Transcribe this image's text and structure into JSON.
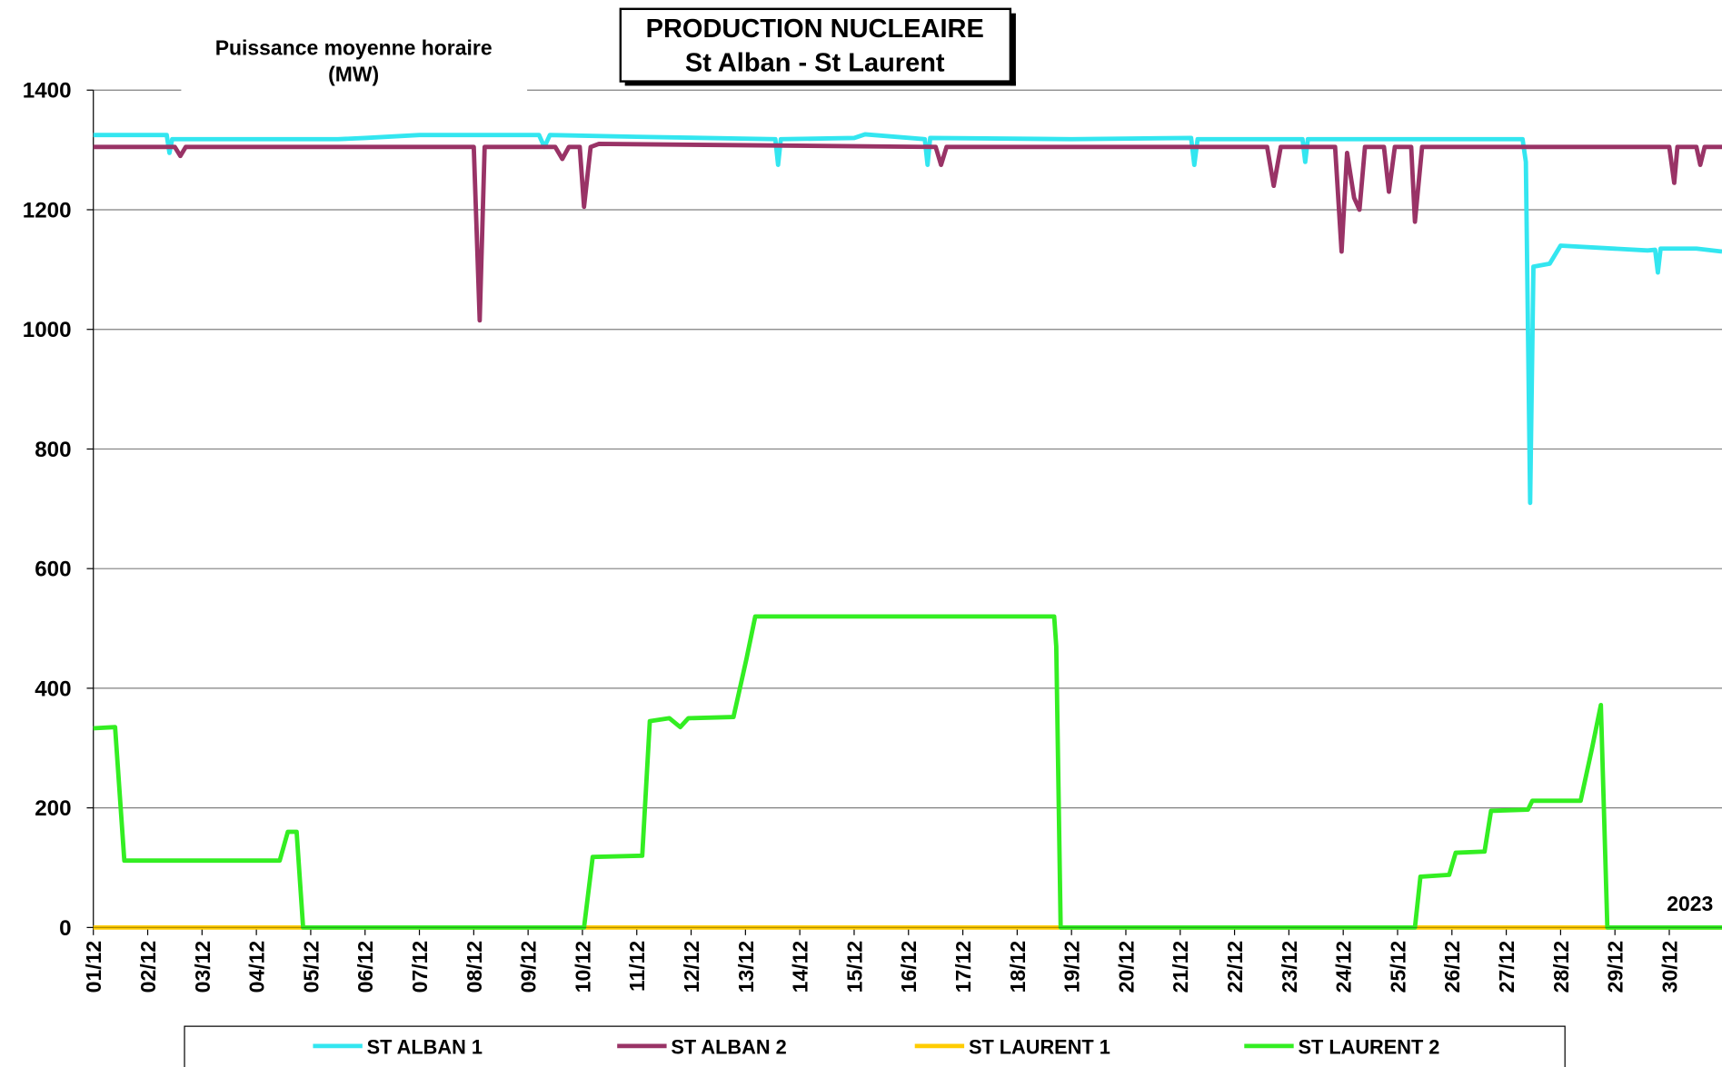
{
  "chart_data": {
    "type": "line",
    "title": "PRODUCTION NUCLEAIRE",
    "subtitle": "St Alban - St Laurent",
    "ylabel": [
      "Puissance moyenne horaire",
      "(MW)"
    ],
    "annotation": "2023",
    "xlim": [
      0,
      29.97
    ],
    "xticks": [
      {
        "value": 0,
        "label": "01/12"
      },
      {
        "value": 1,
        "label": "02/12"
      },
      {
        "value": 2,
        "label": "03/12"
      },
      {
        "value": 3,
        "label": "04/12"
      },
      {
        "value": 4,
        "label": "05/12"
      },
      {
        "value": 5,
        "label": "06/12"
      },
      {
        "value": 6,
        "label": "07/12"
      },
      {
        "value": 7,
        "label": "08/12"
      },
      {
        "value": 8,
        "label": "09/12"
      },
      {
        "value": 9,
        "label": "10/12"
      },
      {
        "value": 10,
        "label": "11/12"
      },
      {
        "value": 11,
        "label": "12/12"
      },
      {
        "value": 12,
        "label": "13/12"
      },
      {
        "value": 13,
        "label": "14/12"
      },
      {
        "value": 14,
        "label": "15/12"
      },
      {
        "value": 15,
        "label": "16/12"
      },
      {
        "value": 16,
        "label": "17/12"
      },
      {
        "value": 17,
        "label": "18/12"
      },
      {
        "value": 18,
        "label": "19/12"
      },
      {
        "value": 19,
        "label": "20/12"
      },
      {
        "value": 20,
        "label": "21/12"
      },
      {
        "value": 21,
        "label": "22/12"
      },
      {
        "value": 22,
        "label": "23/12"
      },
      {
        "value": 23,
        "label": "24/12"
      },
      {
        "value": 24,
        "label": "25/12"
      },
      {
        "value": 25,
        "label": "26/12"
      },
      {
        "value": 26,
        "label": "27/12"
      },
      {
        "value": 27,
        "label": "28/12"
      },
      {
        "value": 28,
        "label": "29/12"
      },
      {
        "value": 29,
        "label": "30/12"
      }
    ],
    "ylim": [
      0,
      1400
    ],
    "yticks": [
      0,
      200,
      400,
      600,
      800,
      1000,
      1200,
      1400
    ],
    "grid": true,
    "legend": "bottom",
    "series": [
      {
        "name": "ST ALBAN 1",
        "color": "#33e6f0",
        "x": [
          0,
          1.35,
          1.4,
          1.45,
          4.5,
          5,
          6,
          8.2,
          8.3,
          8.4,
          10,
          12.55,
          12.6,
          12.65,
          14,
          14.2,
          15.3,
          15.35,
          15.4,
          18,
          20.2,
          20.26,
          20.32,
          22.25,
          22.3,
          22.35,
          26.3,
          26.36,
          26.44,
          26.5,
          26.8,
          27.0,
          28.6,
          28.74,
          28.79,
          28.84,
          29.5,
          29.97
        ],
        "values": [
          1325,
          1325,
          1295,
          1318,
          1318,
          1320,
          1325,
          1325,
          1305,
          1325,
          1322,
          1318,
          1275,
          1318,
          1320,
          1326,
          1318,
          1275,
          1320,
          1318,
          1320,
          1275,
          1318,
          1318,
          1280,
          1318,
          1318,
          1280,
          710,
          1105,
          1110,
          1140,
          1132,
          1133,
          1095,
          1135,
          1135,
          1130
        ]
      },
      {
        "name": "ST ALBAN 2",
        "color": "#993366",
        "x": [
          0,
          1.5,
          1.6,
          1.7,
          7.0,
          7.11,
          7.2,
          8.5,
          8.63,
          8.75,
          8.95,
          9.03,
          9.15,
          9.3,
          15.5,
          15.6,
          15.7,
          21.6,
          21.72,
          21.85,
          22.85,
          22.97,
          23.07,
          23.2,
          23.3,
          23.4,
          23.75,
          23.84,
          23.95,
          24.25,
          24.32,
          24.45,
          29.0,
          29.09,
          29.15,
          29.5,
          29.57,
          29.65,
          29.97
        ],
        "values": [
          1305,
          1305,
          1290,
          1305,
          1305,
          1015,
          1305,
          1305,
          1285,
          1305,
          1305,
          1205,
          1305,
          1310,
          1305,
          1275,
          1305,
          1305,
          1240,
          1305,
          1305,
          1130,
          1295,
          1220,
          1200,
          1305,
          1305,
          1230,
          1305,
          1305,
          1180,
          1305,
          1305,
          1245,
          1305,
          1305,
          1275,
          1305,
          1305
        ]
      },
      {
        "name": "ST LAURENT 1",
        "color": "#ffcc00",
        "x": [
          0,
          29.97
        ],
        "values": [
          0,
          0
        ]
      },
      {
        "name": "ST LAURENT 2",
        "color": "#33ee22",
        "x": [
          0,
          0.4,
          0.57,
          3.43,
          3.58,
          3.74,
          3.86,
          9.03,
          9.19,
          10.1,
          10.24,
          10.6,
          10.8,
          10.95,
          11.78,
          12.02,
          12.18,
          17.68,
          17.72,
          17.8,
          24.32,
          24.42,
          24.95,
          25.07,
          25.6,
          25.72,
          26.4,
          26.48,
          27.37,
          27.58,
          27.74,
          27.86,
          29.97
        ],
        "values": [
          333,
          335,
          112,
          112,
          160,
          160,
          0,
          0,
          118,
          120,
          345,
          350,
          335,
          350,
          352,
          450,
          520,
          520,
          470,
          0,
          0,
          85,
          88,
          125,
          127,
          195,
          197,
          212,
          212,
          300,
          372,
          0,
          0
        ]
      }
    ]
  }
}
